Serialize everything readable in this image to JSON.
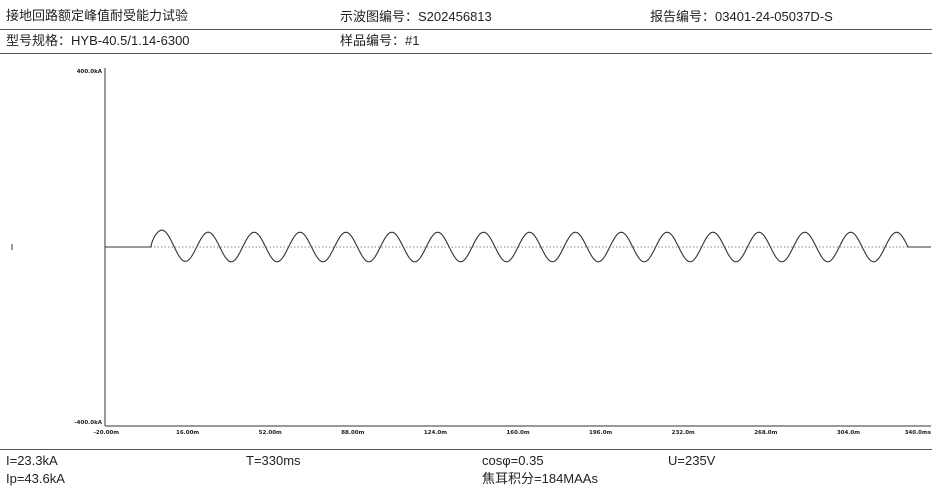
{
  "header": {
    "test_name": "接地回路额定峰值耐受能力试验",
    "waveform_label": "示波图编号：",
    "waveform_no": "S202456813",
    "report_label": "报告编号：",
    "report_no": "03401-24-05037D-S",
    "model_label": "型号规格：",
    "model": "HYB-40.5/1.14-6300",
    "sample_label": "样品编号：",
    "sample_no": "#1"
  },
  "footer": {
    "current": "I=23.3kA",
    "duration": "T=330ms",
    "cosphi": "cosφ=0.35",
    "voltage": "U=235V",
    "peak_current": "Ip=43.6kA",
    "joule_label": "焦耳积分",
    "joule_value": "=184MAAs"
  },
  "chart_data": {
    "type": "line",
    "title": "",
    "xlabel": "",
    "ylabel": "",
    "ylim": [
      -400,
      400
    ],
    "xlim": [
      -20,
      340
    ],
    "y_tick_labels": [
      "400.0kA",
      "-400.0kA"
    ],
    "x_tick_values": [
      -20,
      16,
      52,
      88,
      124,
      160,
      196,
      232,
      268,
      304,
      340
    ],
    "x_tick_labels": [
      "-20.00m",
      "16.00m",
      "52.00m",
      "88.00m",
      "124.0m",
      "160.0m",
      "196.0m",
      "232.0m",
      "268.0m",
      "304.0m",
      "340.0ms"
    ],
    "grid": false,
    "zero_reference": "dotted",
    "series": [
      {
        "frequency_hz": 50,
        "start_ms": 0,
        "end_ms": 330,
        "peak_ka": 43.6,
        "rms_ka": 23.3,
        "power_factor": 0.35,
        "color": "#333333"
      }
    ]
  }
}
